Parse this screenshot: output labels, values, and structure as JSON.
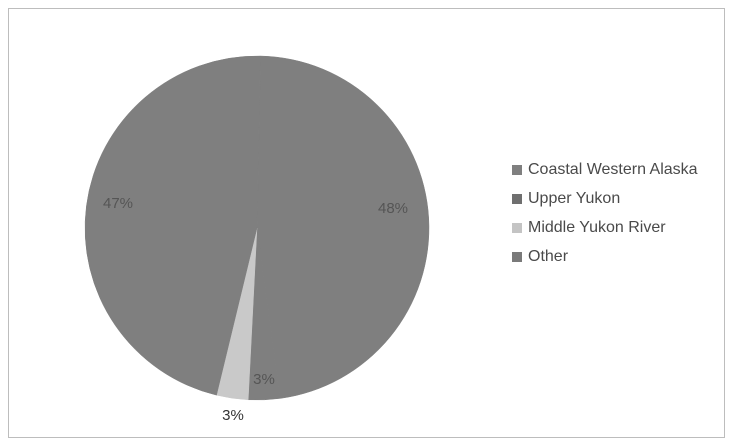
{
  "chart_data": {
    "type": "pie",
    "categories": [
      "Coastal Western Alaska",
      "Upper Yukon",
      "Middle Yukon River",
      "Other"
    ],
    "values": [
      48,
      47,
      3,
      3
    ],
    "data_labels": [
      "48%",
      "47%",
      "3%",
      "3%"
    ],
    "colors": [
      "#7f7f7f",
      "#7f7f7f",
      "#c9c9c9",
      "#7f7f7f"
    ],
    "legend": {
      "placement": "right",
      "items": [
        {
          "label": "Coastal Western Alaska",
          "color": "#7f7f7f"
        },
        {
          "label": "Upper Yukon",
          "color": "#6f6f6f"
        },
        {
          "label": "Middle Yukon River",
          "color": "#c4c4c4"
        },
        {
          "label": "Other",
          "color": "#7a7a7a"
        }
      ]
    }
  }
}
